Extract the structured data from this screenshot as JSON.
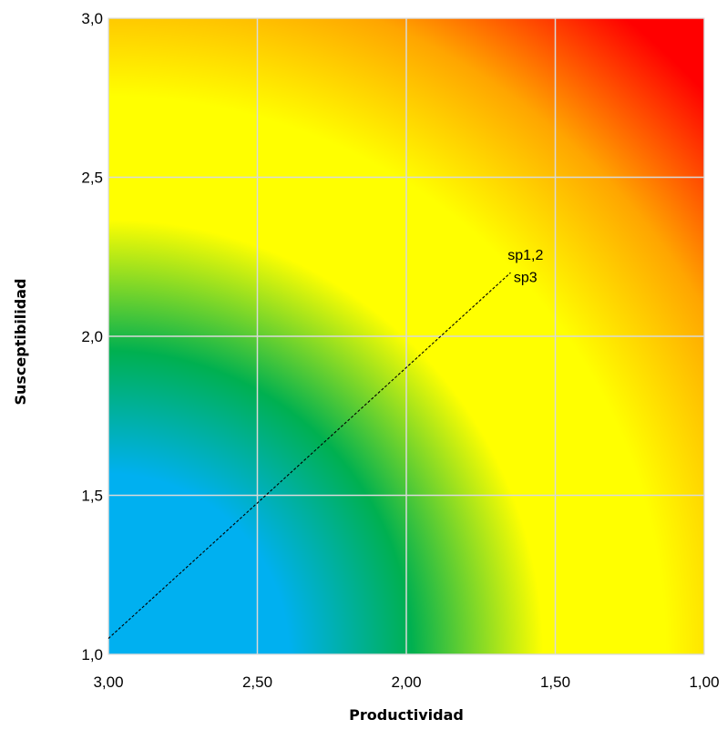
{
  "chart_data": {
    "type": "heatmap",
    "title": "",
    "xlabel": "Productividad",
    "ylabel": "Susceptibilidad",
    "x_reversed": true,
    "xlim": [
      3.0,
      1.0
    ],
    "ylim": [
      1.0,
      3.0
    ],
    "x_ticks": [
      3.0,
      2.5,
      2.0,
      1.5,
      1.0
    ],
    "x_tick_labels": [
      "3,00",
      "2,50",
      "2,00",
      "1,50",
      "1,00"
    ],
    "y_ticks": [
      1.0,
      1.5,
      2.0,
      2.5,
      3.0
    ],
    "y_tick_labels": [
      "1,0",
      "1,5",
      "2,0",
      "2,5",
      "3,0"
    ],
    "grid": true,
    "gradient": "radial distance from (3.0, 1.0): blue near origin, then green, yellow, orange, red toward (1.0, 3.0)",
    "colors": {
      "blue": "#00b0f0",
      "green": "#00b050",
      "yellow": "#ffff00",
      "orange": "#ffa500",
      "red": "#ff0000",
      "grid": "#d9d9d9"
    },
    "reference_line": {
      "style": "dashed",
      "from": {
        "x": 3.0,
        "y": 1.05
      },
      "to": {
        "x": 1.65,
        "y": 2.2
      }
    },
    "annotations": [
      {
        "text": "sp1,2",
        "x": 1.6,
        "y": 2.24
      },
      {
        "text": "sp3",
        "x": 1.6,
        "y": 2.17
      }
    ]
  }
}
